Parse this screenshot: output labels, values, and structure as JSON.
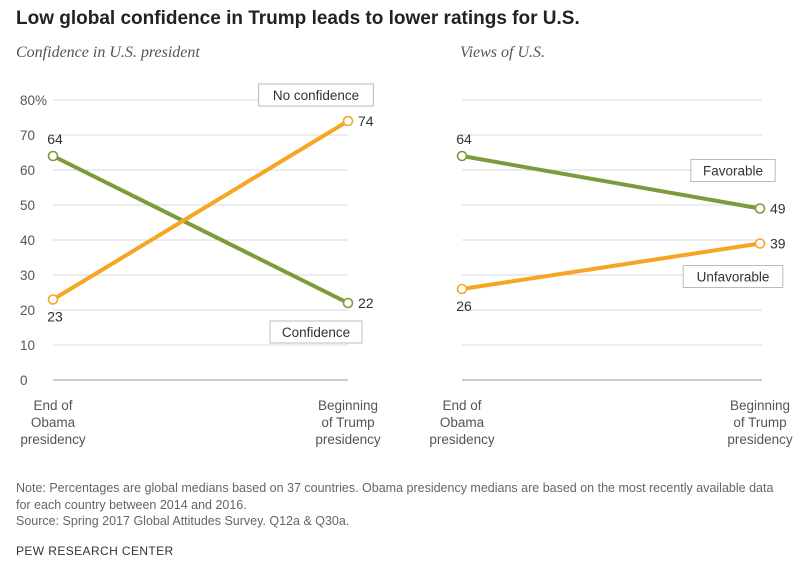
{
  "title": "Low global confidence in Trump leads to lower ratings for U.S.",
  "note": "Note: Percentages are global medians based on 37 countries. Obama presidency medians are based on the most recently available data for each country between 2014 and 2016.",
  "source": "Source: Spring 2017 Global Attitudes Survey. Q12a & Q30a.",
  "org": "PEW RESEARCH CENTER",
  "colors": {
    "green": "#7d9a3d",
    "orange": "#f5a623",
    "grid": "#d8d8d8",
    "axis": "#999999"
  },
  "chart_data": [
    {
      "type": "line",
      "title": "Confidence in U.S. president",
      "categories": [
        "End of Obama presidency",
        "Beginning of Trump presidency"
      ],
      "category_lines": [
        [
          "End of",
          "Obama",
          "presidency"
        ],
        [
          "Beginning",
          "of Trump",
          "presidency"
        ]
      ],
      "ylim": [
        0,
        80
      ],
      "yticks": [
        "0",
        "10",
        "20",
        "30",
        "40",
        "50",
        "60",
        "70",
        "80%"
      ],
      "series": [
        {
          "name": "Confidence",
          "color": "#7d9a3d",
          "values": [
            64,
            22
          ],
          "labels": [
            "64",
            "22"
          ]
        },
        {
          "name": "No confidence",
          "color": "#f5a623",
          "values": [
            23,
            74
          ],
          "labels": [
            "23",
            "74"
          ]
        }
      ]
    },
    {
      "type": "line",
      "title": "Views of U.S.",
      "categories": [
        "End of Obama presidency",
        "Beginning of Trump presidency"
      ],
      "category_lines": [
        [
          "End of",
          "Obama",
          "presidency"
        ],
        [
          "Beginning",
          "of Trump",
          "presidency"
        ]
      ],
      "ylim": [
        0,
        80
      ],
      "series": [
        {
          "name": "Favorable",
          "color": "#7d9a3d",
          "values": [
            64,
            49
          ],
          "labels": [
            "64",
            "49"
          ]
        },
        {
          "name": "Unfavorable",
          "color": "#f5a623",
          "values": [
            26,
            39
          ],
          "labels": [
            "26",
            "39"
          ]
        }
      ]
    }
  ]
}
